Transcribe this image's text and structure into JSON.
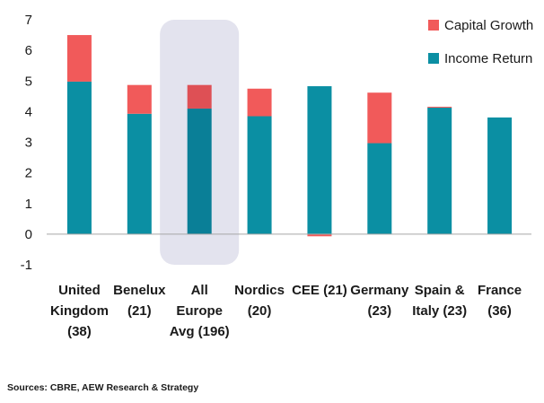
{
  "chart_data": {
    "type": "bar",
    "stacked": true,
    "categories": [
      [
        "United",
        "Kingdom",
        "(38)"
      ],
      [
        "Benelux",
        "(21)"
      ],
      [
        "All",
        "Europe",
        "Avg (196)"
      ],
      [
        "Nordics",
        "(20)"
      ],
      [
        "CEE (21)"
      ],
      [
        "Germany",
        "(23)"
      ],
      [
        "Spain &",
        "Italy (23)"
      ],
      [
        "France",
        "(36)"
      ]
    ],
    "series": [
      {
        "name": "Income Return",
        "color": "#0b8fa3",
        "values": [
          4.98,
          3.93,
          4.1,
          3.85,
          4.83,
          2.97,
          4.13,
          3.81
        ]
      },
      {
        "name": "Capital Growth",
        "color": "#f15a5a",
        "values": [
          1.52,
          0.94,
          0.77,
          0.9,
          -0.07,
          1.65,
          0.03,
          0
        ]
      }
    ],
    "highlight_category_index": 2,
    "highlight_colors": {
      "band": "#e3e3ee",
      "income": "#0a7f97",
      "capital": "#de5055"
    },
    "yticks": [
      -1,
      0,
      1,
      2,
      3,
      4,
      5,
      6,
      7
    ],
    "ylim": [
      -1,
      7
    ],
    "legend": {
      "position": "top-right",
      "order": [
        "Capital Growth",
        "Income Return"
      ]
    },
    "grid": false
  },
  "source": "Sources: CBRE, AEW Research & Strategy"
}
